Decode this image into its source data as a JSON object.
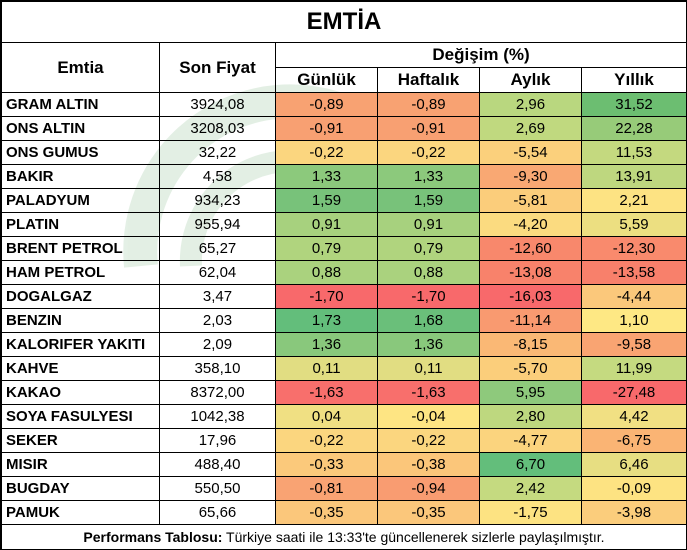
{
  "title": "EMTİA",
  "headers": {
    "emtia": "Emtia",
    "son_fiyat": "Son Fiyat",
    "degisim": "Değişim (%)",
    "gunluk": "Günlük",
    "haftalik": "Haftalık",
    "aylik": "Aylık",
    "yillik": "Yıllık"
  },
  "rows": [
    {
      "name": "GRAM ALTIN",
      "price": "3924,08",
      "gunluk": "-0,89",
      "haftalik": "-0,89",
      "aylik": "2,96",
      "yillik": "31,52",
      "colors": {
        "gunluk": "#f8a272",
        "haftalik": "#f8a272",
        "aylik": "#b9d77f",
        "yillik": "#6cbe71"
      }
    },
    {
      "name": "ONS ALTIN",
      "price": "3208,03",
      "gunluk": "-0,91",
      "haftalik": "-0,91",
      "aylik": "2,69",
      "yillik": "22,28",
      "colors": {
        "gunluk": "#f8a072",
        "haftalik": "#f8a072",
        "aylik": "#c0d97f",
        "yillik": "#97cb79"
      }
    },
    {
      "name": "ONS GUMUS",
      "price": "32,22",
      "gunluk": "-0,22",
      "haftalik": "-0,22",
      "aylik": "-5,54",
      "yillik": "11,53",
      "colors": {
        "gunluk": "#fbd67f",
        "haftalik": "#fbd67f",
        "aylik": "#fbd07c",
        "yillik": "#c4d97f"
      }
    },
    {
      "name": "BAKIR",
      "price": "4,58",
      "gunluk": "1,33",
      "haftalik": "1,33",
      "aylik": "-9,30",
      "yillik": "13,91",
      "colors": {
        "gunluk": "#8cc97c",
        "haftalik": "#8cc97c",
        "aylik": "#f9a873",
        "yillik": "#bed77f"
      }
    },
    {
      "name": "PALADYUM",
      "price": "934,23",
      "gunluk": "1,59",
      "haftalik": "1,59",
      "aylik": "-5,81",
      "yillik": "2,21",
      "colors": {
        "gunluk": "#78c27a",
        "haftalik": "#78c27a",
        "aylik": "#fbcd7b",
        "yillik": "#fde383"
      }
    },
    {
      "name": "PLATIN",
      "price": "955,94",
      "gunluk": "0,91",
      "haftalik": "0,91",
      "aylik": "-4,20",
      "yillik": "5,59",
      "colors": {
        "gunluk": "#a7d17e",
        "haftalik": "#a7d17e",
        "aylik": "#fbdb80",
        "yillik": "#ecdf81"
      }
    },
    {
      "name": "BRENT PETROL",
      "price": "65,27",
      "gunluk": "0,79",
      "haftalik": "0,79",
      "aylik": "-12,60",
      "yillik": "-12,30",
      "colors": {
        "gunluk": "#b0d47e",
        "haftalik": "#b0d47e",
        "aylik": "#f8886c",
        "yillik": "#f98a6d"
      }
    },
    {
      "name": "HAM PETROL",
      "price": "62,04",
      "gunluk": "0,88",
      "haftalik": "0,88",
      "aylik": "-13,08",
      "yillik": "-13,58",
      "colors": {
        "gunluk": "#aad27e",
        "haftalik": "#aad27e",
        "aylik": "#f8826b",
        "yillik": "#f8806b"
      }
    },
    {
      "name": "DOGALGAZ",
      "price": "3,47",
      "gunluk": "-1,70",
      "haftalik": "-1,70",
      "aylik": "-16,03",
      "yillik": "-4,44",
      "colors": {
        "gunluk": "#f8696b",
        "haftalik": "#f8696b",
        "aylik": "#f8696b",
        "yillik": "#fbc87b"
      }
    },
    {
      "name": "BENZIN",
      "price": "2,03",
      "gunluk": "1,73",
      "haftalik": "1,68",
      "aylik": "-11,14",
      "yillik": "1,10",
      "colors": {
        "gunluk": "#63be7b",
        "haftalik": "#6abf7a",
        "aylik": "#f99a70",
        "yillik": "#fee884"
      }
    },
    {
      "name": "KALORIFER YAKITI",
      "price": "2,09",
      "gunluk": "1,36",
      "haftalik": "1,36",
      "aylik": "-8,15",
      "yillik": "-9,58",
      "colors": {
        "gunluk": "#89c87c",
        "haftalik": "#89c87c",
        "aylik": "#fab875",
        "yillik": "#f9a472"
      }
    },
    {
      "name": "KAHVE",
      "price": "358,10",
      "gunluk": "0,11",
      "haftalik": "0,11",
      "aylik": "-5,70",
      "yillik": "11,99",
      "colors": {
        "gunluk": "#e1dd82",
        "haftalik": "#e1dd82",
        "aylik": "#fbce7b",
        "yillik": "#c5da80"
      }
    },
    {
      "name": "KAKAO",
      "price": "8372,00",
      "gunluk": "-1,63",
      "haftalik": "-1,63",
      "aylik": "5,95",
      "yillik": "-27,48",
      "colors": {
        "gunluk": "#f86f6c",
        "haftalik": "#f86f6c",
        "aylik": "#8ec97c",
        "yillik": "#f8696b"
      }
    },
    {
      "name": "SOYA FASULYESI",
      "price": "1042,38",
      "gunluk": "0,04",
      "haftalik": "-0,04",
      "aylik": "2,80",
      "yillik": "4,42",
      "colors": {
        "gunluk": "#f0e083",
        "haftalik": "#fee583",
        "aylik": "#bed87f",
        "yillik": "#f1e083"
      }
    },
    {
      "name": "SEKER",
      "price": "17,96",
      "gunluk": "-0,22",
      "haftalik": "-0,22",
      "aylik": "-4,77",
      "yillik": "-6,75",
      "colors": {
        "gunluk": "#fbd67f",
        "haftalik": "#fbd67f",
        "aylik": "#fbd47e",
        "yillik": "#fab474"
      }
    },
    {
      "name": "MISIR",
      "price": "488,40",
      "gunluk": "-0,33",
      "haftalik": "-0,38",
      "aylik": "6,70",
      "yillik": "6,46",
      "colors": {
        "gunluk": "#fbc97b",
        "haftalik": "#fbc67a",
        "aylik": "#63be7b",
        "yillik": "#e7de82"
      }
    },
    {
      "name": "BUGDAY",
      "price": "550,50",
      "gunluk": "-0,81",
      "haftalik": "-0,94",
      "aylik": "2,42",
      "yillik": "-0,09",
      "colors": {
        "gunluk": "#f9a373",
        "haftalik": "#f99c71",
        "aylik": "#c5da80",
        "yillik": "#fde382"
      }
    },
    {
      "name": "PAMUK",
      "price": "65,66",
      "gunluk": "-0,35",
      "haftalik": "-0,35",
      "aylik": "-1,75",
      "yillik": "-3,98",
      "colors": {
        "gunluk": "#fbc77b",
        "haftalik": "#fbc77b",
        "aylik": "#fde382",
        "yillik": "#fbcd7c"
      }
    }
  ],
  "footer": {
    "bold": "Performans Tablosu:",
    "text": " Türkiye saati ile 13:33'te güncellenerek sizlerle paylaşılmıştır."
  }
}
